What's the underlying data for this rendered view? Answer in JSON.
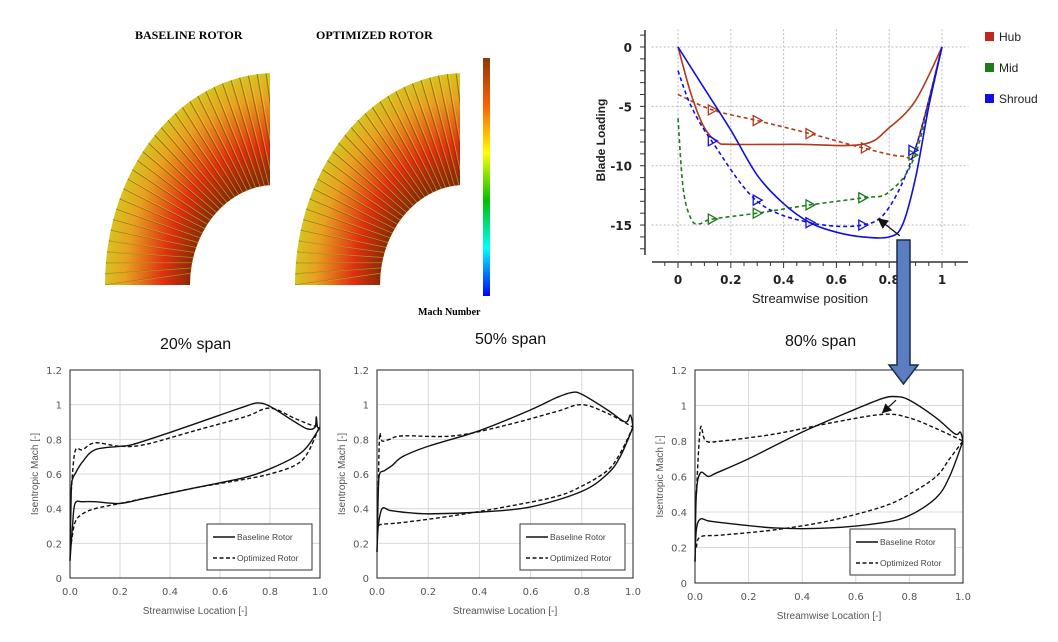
{
  "rotor_panel": {
    "baseline_title": "BASELINE ROTOR",
    "optimized_title": "OPTIMIZED ROTOR",
    "colorbar_label": "Mach Number",
    "colorbar_colors": [
      "#0000ff",
      "#00ffff",
      "#00c000",
      "#ffff00",
      "#ff6000",
      "#8b3a0a"
    ]
  },
  "span_labels": [
    "20% span",
    "50% span",
    "80% span"
  ],
  "chart_data": [
    {
      "type": "line",
      "title": "",
      "xlabel": "Streamwise position",
      "ylabel": "Blade Loading",
      "xlim": [
        -0.1,
        1.1
      ],
      "ylim": [
        -17.5,
        1.5
      ],
      "xticks": [
        0,
        0.2,
        0.4,
        0.6,
        0.8,
        1
      ],
      "xtick_labels": [
        "0",
        "0.2",
        "0.4",
        "0.6",
        "0.8",
        "1"
      ],
      "yticks": [
        0,
        -5,
        -10,
        -15
      ],
      "ytick_labels": [
        "0",
        "-5",
        "-10",
        "-15"
      ],
      "grid": true,
      "legend_position": "right",
      "legend": [
        {
          "label": "Hub",
          "color": "#c0281e"
        },
        {
          "label": "Mid",
          "color": "#1e7a1e"
        },
        {
          "label": "Shroud",
          "color": "#1010e0"
        }
      ],
      "series": [
        {
          "group": "Hub",
          "style": "solid",
          "color": "#b03a1e",
          "x": [
            0,
            0.05,
            0.1,
            0.15,
            0.2,
            0.45,
            0.7,
            0.8,
            0.9,
            1
          ],
          "y": [
            0,
            -4,
            -6.8,
            -8,
            -8.2,
            -8.2,
            -8.2,
            -6.8,
            -4.5,
            0
          ]
        },
        {
          "group": "Hub",
          "style": "dashed",
          "color": "#b03a1e",
          "x": [
            0,
            0.13,
            0.3,
            0.5,
            0.7,
            0.85,
            0.9,
            1
          ],
          "y": [
            -4,
            -5.3,
            -6.2,
            -7.3,
            -8.5,
            -9.2,
            -8.5,
            0
          ],
          "markers_x": [
            0.13,
            0.3,
            0.5,
            0.71
          ],
          "markers_y": [
            -5.3,
            -6.2,
            -7.3,
            -8.5
          ]
        },
        {
          "group": "Mid",
          "style": "dashed",
          "color": "#1e7a1e",
          "x": [
            0,
            0.02,
            0.05,
            0.08,
            0.13,
            0.3,
            0.5,
            0.7,
            0.8,
            0.9,
            1
          ],
          "y": [
            -6,
            -12,
            -14.5,
            -14.9,
            -14.5,
            -14,
            -13.3,
            -12.7,
            -12.2,
            -9,
            0
          ],
          "markers_x": [
            0.13,
            0.3,
            0.5,
            0.7,
            0.89
          ],
          "markers_y": [
            -14.5,
            -14,
            -13.3,
            -12.7,
            -9.1
          ]
        },
        {
          "group": "Shroud",
          "style": "solid",
          "color": "#1010e0",
          "x": [
            0,
            0.1,
            0.2,
            0.3,
            0.4,
            0.5,
            0.6,
            0.7,
            0.8,
            0.85,
            0.9,
            0.95,
            1
          ],
          "y": [
            0,
            -3.5,
            -7,
            -10.8,
            -13.2,
            -14.8,
            -15.6,
            -16,
            -16,
            -15,
            -11,
            -5,
            0
          ]
        },
        {
          "group": "Shroud",
          "style": "dashed",
          "color": "#1010e0",
          "x": [
            0,
            0.05,
            0.13,
            0.3,
            0.5,
            0.7,
            0.8,
            0.9,
            1
          ],
          "y": [
            -2,
            -5,
            -8,
            -13,
            -14.8,
            -15,
            -13.5,
            -8.5,
            0
          ],
          "markers_x": [
            0.13,
            0.3,
            0.5,
            0.7,
            0.89
          ],
          "markers_y": [
            -7.9,
            -12.9,
            -14.8,
            -15,
            -8.7
          ]
        }
      ],
      "annotation_arrow": {
        "from": [
          0.84,
          -15.9
        ],
        "to": [
          0.76,
          -14.5
        ]
      }
    },
    {
      "type": "line",
      "title": "",
      "xlabel": "Streamwise Location [-]",
      "ylabel": "Isentropic Mach [-]",
      "xlim": [
        0,
        1
      ],
      "ylim": [
        0,
        1.2
      ],
      "xticks": [
        0,
        0.2,
        0.4,
        0.6,
        0.8,
        1
      ],
      "xtick_labels": [
        "0.0",
        "0.2",
        "0.4",
        "0.6",
        "0.8",
        "1.0"
      ],
      "yticks": [
        0,
        0.2,
        0.4,
        0.6,
        0.8,
        1,
        1.2
      ],
      "ytick_labels": [
        "0",
        "0.2",
        "0.4",
        "0.6",
        "0.8",
        "1",
        "1.2"
      ],
      "grid": true,
      "legend_position": "bottom-right",
      "legend": [
        {
          "label": "Baseline Rotor",
          "style": "solid"
        },
        {
          "label": "Optimized Rotor",
          "style": "dashed"
        }
      ],
      "series": [
        {
          "name": "Baseline Rotor",
          "style": "solid",
          "x": [
            0,
            0.005,
            0.01,
            0.02,
            0.05,
            0.1,
            0.2,
            0.25,
            0.4,
            0.6,
            0.7,
            0.75,
            0.8,
            0.9,
            0.95,
            0.98,
            0.985,
            0.99,
            1
          ],
          "y": [
            0.1,
            0.5,
            0.57,
            0.6,
            0.67,
            0.74,
            0.76,
            0.77,
            0.84,
            0.94,
            0.99,
            1.01,
            0.99,
            0.9,
            0.86,
            0.87,
            0.93,
            0.87,
            0.87
          ]
        },
        {
          "name": "Baseline Rotor",
          "style": "solid",
          "x": [
            0,
            0.01,
            0.02,
            0.05,
            0.1,
            0.2,
            0.3,
            0.5,
            0.7,
            0.8,
            0.9,
            0.95,
            1
          ],
          "y": [
            0.1,
            0.3,
            0.43,
            0.44,
            0.44,
            0.43,
            0.46,
            0.52,
            0.58,
            0.63,
            0.7,
            0.76,
            0.87
          ]
        },
        {
          "name": "Optimized Rotor",
          "style": "dashed",
          "x": [
            0.005,
            0.02,
            0.05,
            0.1,
            0.2,
            0.3,
            0.5,
            0.7,
            0.8,
            0.9,
            0.97,
            1
          ],
          "y": [
            0.5,
            0.73,
            0.74,
            0.78,
            0.76,
            0.77,
            0.85,
            0.93,
            0.98,
            0.92,
            0.88,
            0.88
          ]
        },
        {
          "name": "Optimized Rotor",
          "style": "dashed",
          "x": [
            0.005,
            0.02,
            0.05,
            0.1,
            0.2,
            0.3,
            0.5,
            0.7,
            0.8,
            0.9,
            0.95,
            1
          ],
          "y": [
            0.2,
            0.32,
            0.37,
            0.4,
            0.43,
            0.46,
            0.52,
            0.57,
            0.6,
            0.65,
            0.72,
            0.88
          ]
        }
      ]
    },
    {
      "type": "line",
      "title": "",
      "xlabel": "Streamwise Location [-]",
      "ylabel": "Isentropic Mach [-]",
      "xlim": [
        0,
        1
      ],
      "ylim": [
        0,
        1.2
      ],
      "xticks": [
        0,
        0.2,
        0.4,
        0.6,
        0.8,
        1
      ],
      "xtick_labels": [
        "0.0",
        "0.2",
        "0.4",
        "0.6",
        "0.8",
        "1.0"
      ],
      "yticks": [
        0,
        0.2,
        0.4,
        0.6,
        0.8,
        1,
        1.2
      ],
      "ytick_labels": [
        "0",
        "0.2",
        "0.4",
        "0.6",
        "0.8",
        "1",
        "1.2"
      ],
      "grid": true,
      "legend_position": "bottom-right",
      "legend": [
        {
          "label": "Baseline Rotor",
          "style": "solid"
        },
        {
          "label": "Optimized Rotor",
          "style": "dashed"
        }
      ],
      "series": [
        {
          "name": "Baseline Rotor",
          "style": "solid",
          "x": [
            0,
            0.005,
            0.01,
            0.03,
            0.06,
            0.1,
            0.2,
            0.4,
            0.6,
            0.7,
            0.76,
            0.8,
            0.9,
            0.97,
            0.99,
            1
          ],
          "y": [
            0.15,
            0.5,
            0.6,
            0.62,
            0.65,
            0.7,
            0.76,
            0.85,
            0.97,
            1.04,
            1.07,
            1.06,
            0.97,
            0.9,
            0.94,
            0.87
          ]
        },
        {
          "name": "Baseline Rotor",
          "style": "solid",
          "x": [
            0,
            0.005,
            0.02,
            0.05,
            0.1,
            0.2,
            0.4,
            0.6,
            0.8,
            0.9,
            0.95,
            1
          ],
          "y": [
            0.15,
            0.3,
            0.4,
            0.39,
            0.38,
            0.37,
            0.38,
            0.41,
            0.5,
            0.6,
            0.7,
            0.87
          ]
        },
        {
          "name": "Optimized Rotor",
          "style": "dashed",
          "x": [
            0.005,
            0.01,
            0.02,
            0.05,
            0.1,
            0.3,
            0.5,
            0.7,
            0.8,
            0.9,
            1
          ],
          "y": [
            0.5,
            0.82,
            0.79,
            0.8,
            0.82,
            0.82,
            0.88,
            0.96,
            1.0,
            0.95,
            0.87
          ]
        },
        {
          "name": "Optimized Rotor",
          "style": "dashed",
          "x": [
            0.005,
            0.02,
            0.1,
            0.3,
            0.5,
            0.7,
            0.8,
            0.9,
            0.95,
            1
          ],
          "y": [
            0.3,
            0.31,
            0.32,
            0.36,
            0.41,
            0.47,
            0.53,
            0.62,
            0.72,
            0.87
          ]
        }
      ]
    },
    {
      "type": "line",
      "title": "",
      "xlabel": "Streamwise Location [-]",
      "ylabel": "Isentropic Mach [-]",
      "xlim": [
        0,
        1
      ],
      "ylim": [
        0,
        1.2
      ],
      "xticks": [
        0,
        0.2,
        0.4,
        0.6,
        0.8,
        1
      ],
      "xtick_labels": [
        "0.0",
        "0.2",
        "0.4",
        "0.6",
        "0.8",
        "1.0"
      ],
      "yticks": [
        0,
        0.2,
        0.4,
        0.6,
        0.8,
        1,
        1.2
      ],
      "ytick_labels": [
        "0",
        "0.2",
        "0.4",
        "0.6",
        "0.8",
        "1",
        "1.2"
      ],
      "grid": true,
      "legend_position": "bottom-right",
      "legend": [
        {
          "label": "Baseline Rotor",
          "style": "solid"
        },
        {
          "label": "Optimized Rotor",
          "style": "dashed"
        }
      ],
      "series": [
        {
          "name": "Baseline Rotor",
          "style": "solid",
          "x": [
            0,
            0.005,
            0.02,
            0.05,
            0.08,
            0.2,
            0.4,
            0.6,
            0.7,
            0.75,
            0.8,
            0.9,
            0.97,
            0.99,
            1
          ],
          "y": [
            0.12,
            0.5,
            0.62,
            0.6,
            0.62,
            0.7,
            0.85,
            0.98,
            1.04,
            1.05,
            1.03,
            0.93,
            0.84,
            0.85,
            0.8
          ]
        },
        {
          "name": "Baseline Rotor",
          "style": "solid",
          "x": [
            0,
            0.005,
            0.02,
            0.05,
            0.1,
            0.3,
            0.5,
            0.7,
            0.8,
            0.9,
            0.95,
            1
          ],
          "y": [
            0.12,
            0.3,
            0.36,
            0.35,
            0.34,
            0.31,
            0.31,
            0.34,
            0.38,
            0.48,
            0.6,
            0.8
          ]
        },
        {
          "name": "Optimized Rotor",
          "style": "dashed",
          "x": [
            0.005,
            0.02,
            0.04,
            0.1,
            0.3,
            0.5,
            0.7,
            0.8,
            0.9,
            1
          ],
          "y": [
            0.5,
            0.87,
            0.8,
            0.8,
            0.84,
            0.9,
            0.95,
            0.93,
            0.87,
            0.8
          ]
        },
        {
          "name": "Optimized Rotor",
          "style": "dashed",
          "x": [
            0.005,
            0.02,
            0.1,
            0.3,
            0.5,
            0.7,
            0.8,
            0.9,
            0.95,
            1
          ],
          "y": [
            0.2,
            0.26,
            0.27,
            0.3,
            0.35,
            0.43,
            0.5,
            0.6,
            0.7,
            0.8
          ]
        }
      ],
      "annotation_arrow": {
        "from": [
          0.75,
          1.03
        ],
        "to": [
          0.7,
          0.96
        ]
      }
    }
  ],
  "callout_arrow_color": "#5b7ec0"
}
